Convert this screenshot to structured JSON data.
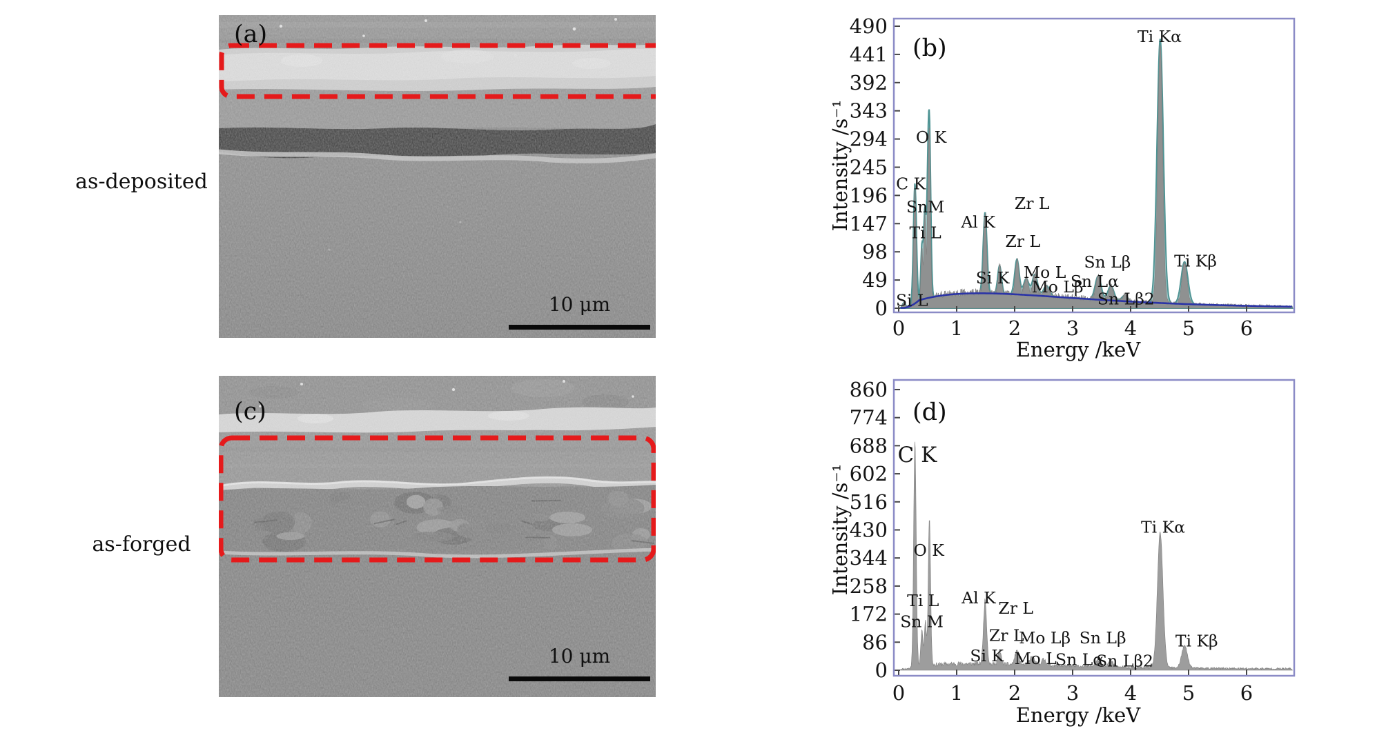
{
  "figure": {
    "panels": {
      "a": {
        "letter": "(a)",
        "row_label": "as-deposited",
        "scale_bar_label": "10 μm"
      },
      "c": {
        "letter": "(c)",
        "row_label": "as-forged",
        "scale_bar_label": "10 μm"
      }
    },
    "colors": {
      "annotation_red": "#e51a1b",
      "chart_border": "#8b8bc6",
      "spectrum_gray_b": "#8f8f8f",
      "spectrum_gray_d": "#999999",
      "fit_teal": "#4f9494",
      "background_blue": "#2b34a6",
      "scale_bar_black": "#0a0a0a",
      "sem_base_gray": "#7c7c7c"
    }
  },
  "chart_data": [
    {
      "id": "b",
      "type": "area",
      "panel_letter": "(b)",
      "xlabel": "Energy /keV",
      "ylabel": "Intensity /s⁻¹",
      "xlim": [
        0,
        6.8
      ],
      "ylim": [
        0,
        490
      ],
      "xticks": [
        0,
        1,
        2,
        3,
        4,
        5,
        6
      ],
      "yticks": [
        0,
        49,
        98,
        147,
        196,
        245,
        294,
        343,
        392,
        441,
        490
      ],
      "grid": false,
      "legend": "none",
      "series": [
        {
          "name": "measured spectrum",
          "color": "#8f8f8f"
        },
        {
          "name": "fitted spectrum",
          "color": "#4f9494"
        },
        {
          "name": "bremsstrahlung background",
          "color": "#2b34a6"
        }
      ],
      "background_curve": {
        "amp": 26,
        "peak_kev": 1.4
      },
      "noise": {
        "seed": 3,
        "base": 3,
        "bg_factor": 0.4
      },
      "peaks": [
        {
          "label": "Si L",
          "e": 0.09,
          "i": 9,
          "w": 0.02
        },
        {
          "label": "C K",
          "e": 0.28,
          "i": 205,
          "w": 0.02
        },
        {
          "label": "Sn M",
          "e": 0.4,
          "i": 90,
          "w": 0.015
        },
        {
          "label": "Ti L",
          "e": 0.452,
          "i": 150,
          "w": 0.016
        },
        {
          "label": "",
          "e": 0.5,
          "i": 110,
          "w": 0.014
        },
        {
          "label": "O K",
          "e": 0.53,
          "i": 285,
          "w": 0.018
        },
        {
          "label": "Al K",
          "e": 1.49,
          "i": 138,
          "w": 0.025
        },
        {
          "label": "Si K",
          "e": 1.74,
          "i": 48,
          "w": 0.025
        },
        {
          "label": "Zr L",
          "e": 2.04,
          "i": 60,
          "w": 0.03
        },
        {
          "label": "Zr L",
          "e": 2.2,
          "i": 28,
          "w": 0.035
        },
        {
          "label": "Mo L",
          "e": 2.35,
          "i": 36,
          "w": 0.035
        },
        {
          "label": "Mo Lβ",
          "e": 2.55,
          "i": 18,
          "w": 0.04
        },
        {
          "label": "Sn Lα",
          "e": 3.44,
          "i": 40,
          "w": 0.04
        },
        {
          "label": "Sn Lβ",
          "e": 3.66,
          "i": 25,
          "w": 0.04
        },
        {
          "label": "Sn Lβ2",
          "e": 3.9,
          "i": 10,
          "w": 0.04
        },
        {
          "label": "Ti Kα",
          "e": 4.51,
          "i": 450,
          "w": 0.042
        },
        {
          "label": "Ti Kβ",
          "e": 4.93,
          "i": 72,
          "w": 0.045
        }
      ],
      "annotations": [
        {
          "text": "C K",
          "x": 0.21,
          "y": 216
        },
        {
          "text": "SnM",
          "x": 0.46,
          "y": 176
        },
        {
          "text": "Ti L",
          "x": 0.46,
          "y": 131
        },
        {
          "text": "Si L",
          "x": 0.23,
          "y": 14
        },
        {
          "text": "O K",
          "x": 0.56,
          "y": 297
        },
        {
          "text": "Al K",
          "x": 1.37,
          "y": 150
        },
        {
          "text": "Si K",
          "x": 1.62,
          "y": 53
        },
        {
          "text": "Zr L",
          "x": 2.3,
          "y": 182
        },
        {
          "text": "Zr L",
          "x": 2.14,
          "y": 116
        },
        {
          "text": "Mo L",
          "x": 2.52,
          "y": 62
        },
        {
          "text": "Mo Lβ",
          "x": 2.74,
          "y": 37
        },
        {
          "text": "Sn Lβ",
          "x": 3.6,
          "y": 80
        },
        {
          "text": "Sn Lα",
          "x": 3.38,
          "y": 47
        },
        {
          "text": "Sn Lβ2",
          "x": 3.92,
          "y": 16
        },
        {
          "text": "Ti Kα",
          "x": 4.5,
          "y": 472
        },
        {
          "text": "Ti Kβ",
          "x": 5.12,
          "y": 82
        }
      ]
    },
    {
      "id": "d",
      "type": "area",
      "panel_letter": "(d)",
      "xlabel": "Energy /keV",
      "ylabel": "Intensity /s⁻¹",
      "xlim": [
        0,
        6.8
      ],
      "ylim": [
        0,
        860
      ],
      "xticks": [
        0,
        1,
        2,
        3,
        4,
        5,
        6
      ],
      "yticks": [
        0,
        86,
        172,
        258,
        344,
        430,
        516,
        602,
        688,
        774,
        860
      ],
      "grid": false,
      "legend": "none",
      "series": [
        {
          "name": "measured spectrum",
          "color": "#999999"
        }
      ],
      "background_curve": null,
      "noise": {
        "seed": 11,
        "base": 4,
        "bg_factor": 0.55
      },
      "peaks": [
        {
          "label": "C K",
          "e": 0.28,
          "i": 690,
          "w": 0.022
        },
        {
          "label": "Ti L",
          "e": 0.4,
          "i": 110,
          "w": 0.018
        },
        {
          "label": "Sn M",
          "e": 0.46,
          "i": 135,
          "w": 0.018
        },
        {
          "label": "O K",
          "e": 0.53,
          "i": 455,
          "w": 0.02
        },
        {
          "label": "Al K",
          "e": 1.49,
          "i": 195,
          "w": 0.028
        },
        {
          "label": "Si K",
          "e": 1.74,
          "i": 38,
          "w": 0.03
        },
        {
          "label": "Zr L",
          "e": 2.04,
          "i": 42,
          "w": 0.035
        },
        {
          "label": "Mo L",
          "e": 2.3,
          "i": 25,
          "w": 0.04
        },
        {
          "label": "Mo Lβ",
          "e": 2.5,
          "i": 18,
          "w": 0.04
        },
        {
          "label": "Sn Lα",
          "e": 3.44,
          "i": 20,
          "w": 0.05
        },
        {
          "label": "Sn Lβ",
          "e": 3.66,
          "i": 16,
          "w": 0.05
        },
        {
          "label": "Ti Kα",
          "e": 4.51,
          "i": 415,
          "w": 0.048
        },
        {
          "label": "Ti Kβ",
          "e": 4.93,
          "i": 68,
          "w": 0.05
        }
      ],
      "annotations": [
        {
          "text": "C K",
          "x": 0.32,
          "y": 655,
          "size": 31
        },
        {
          "text": "O K",
          "x": 0.52,
          "y": 368
        },
        {
          "text": "Ti L",
          "x": 0.42,
          "y": 213
        },
        {
          "text": "Sn M",
          "x": 0.4,
          "y": 149
        },
        {
          "text": "Al K",
          "x": 1.38,
          "y": 222
        },
        {
          "text": "Zr L",
          "x": 2.02,
          "y": 190
        },
        {
          "text": "Zr L",
          "x": 1.86,
          "y": 107
        },
        {
          "text": "Si K",
          "x": 1.52,
          "y": 44
        },
        {
          "text": "Mo Lβ",
          "x": 2.52,
          "y": 99
        },
        {
          "text": "Mo L",
          "x": 2.36,
          "y": 36
        },
        {
          "text": "Sn Lβ",
          "x": 3.52,
          "y": 99
        },
        {
          "text": "Sn Lα",
          "x": 3.12,
          "y": 33
        },
        {
          "text": "Sn Lβ2",
          "x": 3.9,
          "y": 28
        },
        {
          "text": "Ti Kα",
          "x": 4.56,
          "y": 438
        },
        {
          "text": "Ti Kβ",
          "x": 5.14,
          "y": 90
        }
      ]
    }
  ]
}
